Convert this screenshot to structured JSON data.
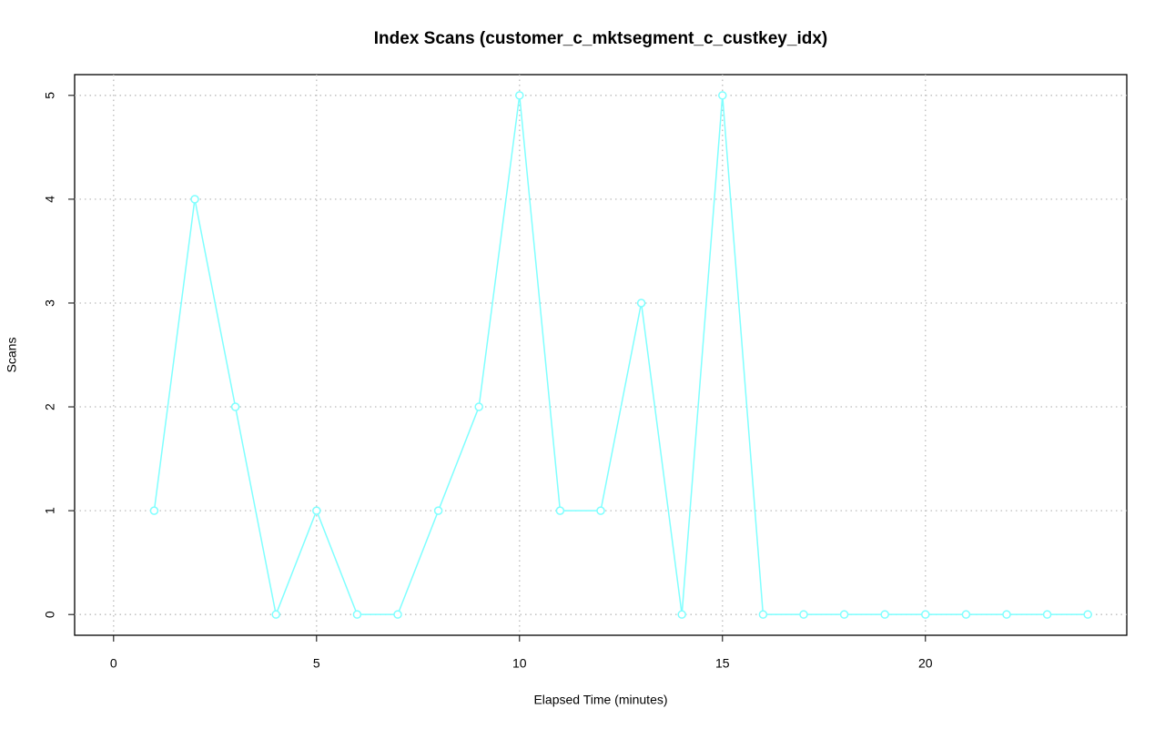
{
  "chart_data": {
    "type": "line",
    "title": "Index Scans (customer_c_mktsegment_c_custkey_idx)",
    "x_label": "Elapsed Time (minutes)",
    "y_label": "Scans",
    "x": [
      1,
      2,
      3,
      4,
      5,
      6,
      7,
      8,
      9,
      10,
      11,
      12,
      13,
      14,
      15,
      16,
      17,
      18,
      19,
      20,
      21,
      22,
      23,
      24
    ],
    "series": [
      {
        "name": "Scans",
        "color": "#7fffff",
        "values": [
          1,
          4,
          2,
          0,
          1,
          0,
          0,
          1,
          2,
          5,
          1,
          1,
          3,
          0,
          5,
          0,
          0,
          0,
          0,
          0,
          0,
          0,
          0,
          0
        ]
      }
    ],
    "xlim": [
      -0.96,
      24.96
    ],
    "xticks": [
      0,
      5,
      10,
      15,
      20
    ],
    "ylim": [
      -0.2,
      5.2
    ],
    "yticks": [
      0,
      1,
      2,
      3,
      4,
      5
    ],
    "grid": true
  }
}
